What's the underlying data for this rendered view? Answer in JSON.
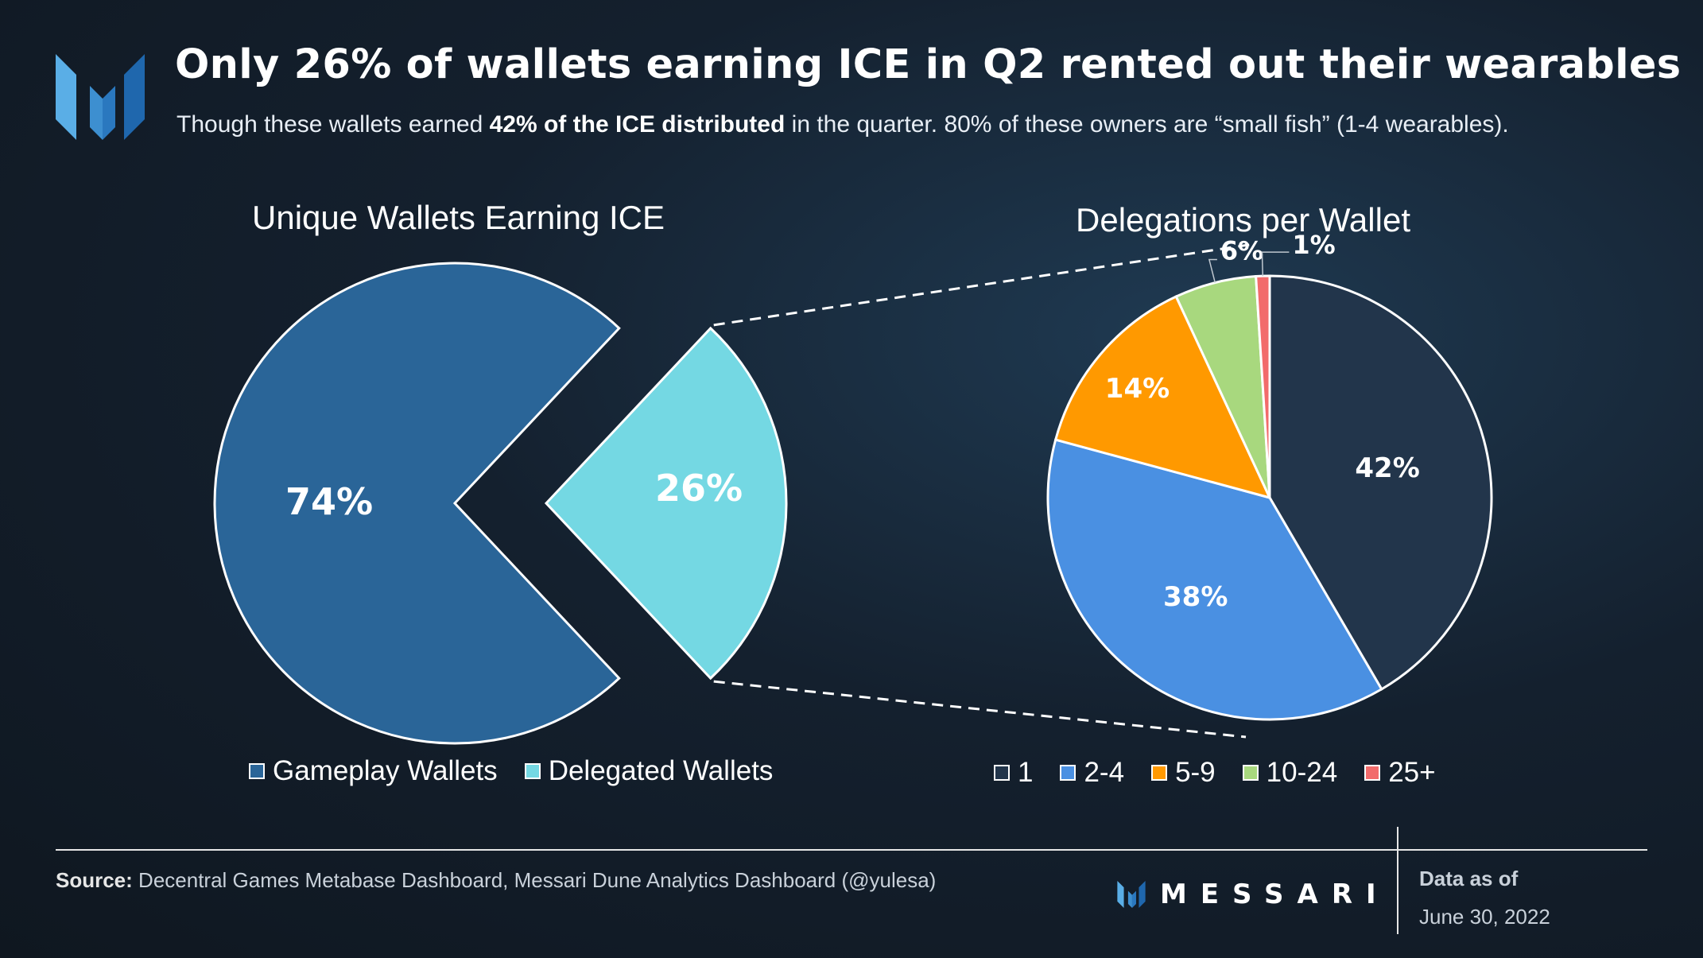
{
  "header": {
    "title": "Only 26% of wallets earning ICE in Q2 rented out their wearables",
    "subtitle_pre": "Though these wallets earned ",
    "subtitle_bold": "42% of the ICE distributed",
    "subtitle_post": " in the quarter. 80% of these owners are “small fish” (1-4 wearables)."
  },
  "colors": {
    "gameplay": "#2a6598",
    "delegated": "#74d8e3",
    "d1": "#22354b",
    "d2_4": "#4a90e2",
    "d5_9": "#ff9900",
    "d10_24": "#a8d87e",
    "d25_plus": "#f26b6b"
  },
  "chart_data": [
    {
      "type": "pie",
      "title": "Unique Wallets Earning ICE",
      "categories": [
        "Gameplay Wallets",
        "Delegated Wallets"
      ],
      "values": [
        74,
        26
      ],
      "data_labels": [
        "74%",
        "26%"
      ],
      "legend": [
        "Gameplay Wallets",
        "Delegated Wallets"
      ],
      "legend_position": "bottom"
    },
    {
      "type": "pie",
      "title": "Delegations per Wallet",
      "categories": [
        "1",
        "2-4",
        "5-9",
        "10-24",
        "25+"
      ],
      "values": [
        42,
        38,
        14,
        6,
        1
      ],
      "data_labels": [
        "42%",
        "38%",
        "14%",
        "6%",
        "1%"
      ],
      "legend": [
        "1",
        "2-4",
        "5-9",
        "10-24",
        "25+"
      ],
      "legend_position": "bottom"
    }
  ],
  "footer": {
    "source_label": "Source:",
    "source_text": " Decentral Games Metabase Dashboard, Messari Dune Analytics Dashboard (@yulesa)",
    "brand": "MESSARI",
    "data_as_of_label": "Data as of",
    "data_as_of_date": "June 30, 2022"
  }
}
